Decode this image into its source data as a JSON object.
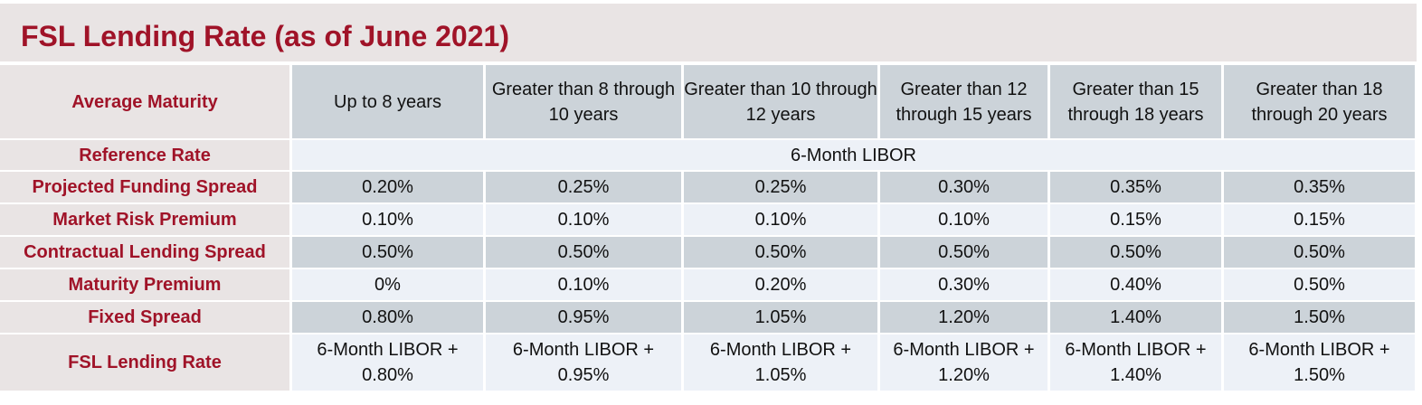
{
  "title": "FSL Lending Rate (as of June 2021)",
  "table": {
    "header_label": "Average Maturity",
    "columns": [
      "Up to 8 years",
      "Greater than 8 through 10 years",
      "Greater than 10 through 12 years",
      "Greater than 12 through 15 years",
      "Greater than 15 through 18 years",
      "Greater than 18 through 20 years"
    ],
    "reference_rate": {
      "label": "Reference Rate",
      "value": "6-Month LIBOR"
    },
    "rows": [
      {
        "label": "Projected Funding Spread",
        "values": [
          "0.20%",
          "0.25%",
          "0.25%",
          "0.30%",
          "0.35%",
          "0.35%"
        ]
      },
      {
        "label": "Market Risk Premium",
        "values": [
          "0.10%",
          "0.10%",
          "0.10%",
          "0.10%",
          "0.15%",
          "0.15%"
        ]
      },
      {
        "label": "Contractual Lending Spread",
        "values": [
          "0.50%",
          "0.50%",
          "0.50%",
          "0.50%",
          "0.50%",
          "0.50%"
        ]
      },
      {
        "label": "Maturity Premium",
        "values": [
          "0%",
          "0.10%",
          "0.20%",
          "0.30%",
          "0.40%",
          "0.50%"
        ]
      },
      {
        "label": "Fixed Spread",
        "values": [
          "0.80%",
          "0.95%",
          "1.05%",
          "1.20%",
          "1.40%",
          "1.50%"
        ]
      }
    ],
    "lending_rate": {
      "label": "FSL Lending Rate",
      "values": [
        "6-Month LIBOR + 0.80%",
        "6-Month LIBOR + 0.95%",
        "6-Month LIBOR + 1.05%",
        "6-Month LIBOR + 1.20%",
        "6-Month LIBOR + 1.40%",
        "6-Month LIBOR + 1.50%"
      ]
    }
  },
  "colors": {
    "accent": "#a01328",
    "label_background": "#e9e4e4",
    "dark_cell": "#ccd3d9",
    "light_cell": "#edf1f7"
  }
}
